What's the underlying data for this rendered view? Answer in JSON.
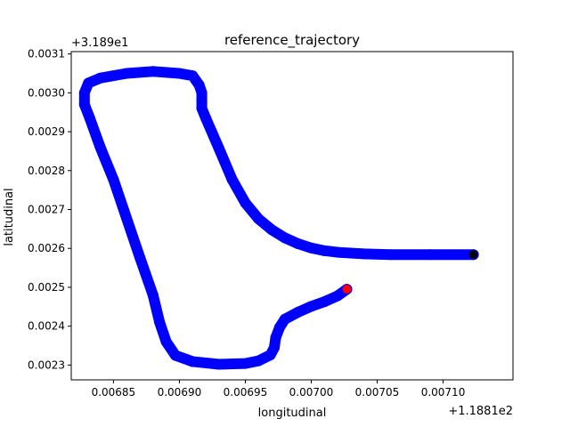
{
  "chart_data": {
    "type": "scatter",
    "title": "reference_trajectory",
    "xlabel": "longitudinal",
    "ylabel": "latitudinal",
    "x_offset_label": "+1.1881e2",
    "y_offset_label": "+3.189e1",
    "xlim": [
      0.006818,
      0.007153
    ],
    "ylim": [
      0.002262,
      0.003106
    ],
    "x_ticks": [
      0.00685,
      0.0069,
      0.00695,
      0.007,
      0.00705,
      0.0071
    ],
    "x_tick_labels": [
      "0.00685",
      "0.00690",
      "0.00695",
      "0.00700",
      "0.00705",
      "0.00710"
    ],
    "y_ticks": [
      0.0023,
      0.0024,
      0.0025,
      0.0026,
      0.0027,
      0.0028,
      0.0029,
      0.003,
      0.0031
    ],
    "y_tick_labels": [
      "0.0023",
      "0.0024",
      "0.0025",
      "0.0026",
      "0.0027",
      "0.0028",
      "0.0029",
      "0.0030",
      "0.0031"
    ],
    "grid": false,
    "series": [
      {
        "color": "#0000ff",
        "points": [
          [
            0.007123,
            0.002584
          ],
          [
            0.00709,
            0.002584
          ],
          [
            0.00706,
            0.002584
          ],
          [
            0.00704,
            0.002586
          ],
          [
            0.00702,
            0.00259
          ],
          [
            0.00701,
            0.002594
          ],
          [
            0.007,
            0.002601
          ],
          [
            0.00699,
            0.002612
          ],
          [
            0.00698,
            0.002627
          ],
          [
            0.00697,
            0.002648
          ],
          [
            0.00696,
            0.002676
          ],
          [
            0.00695,
            0.002717
          ],
          [
            0.00694,
            0.002777
          ],
          [
            0.00693,
            0.002857
          ],
          [
            0.00692,
            0.002935
          ],
          [
            0.006917,
            0.00296
          ],
          [
            0.006917,
            0.00298
          ],
          [
            0.006917,
            0.003
          ],
          [
            0.006915,
            0.00302
          ],
          [
            0.00691,
            0.003044
          ],
          [
            0.0069,
            0.00305
          ],
          [
            0.00688,
            0.003055
          ],
          [
            0.00686,
            0.00305
          ],
          [
            0.00684,
            0.003038
          ],
          [
            0.006831,
            0.003025
          ],
          [
            0.006828,
            0.003
          ],
          [
            0.006828,
            0.00297
          ],
          [
            0.006832,
            0.002935
          ],
          [
            0.00684,
            0.00286
          ],
          [
            0.00685,
            0.002777
          ],
          [
            0.00686,
            0.002677
          ],
          [
            0.00687,
            0.002577
          ],
          [
            0.00688,
            0.00248
          ],
          [
            0.006885,
            0.00241
          ],
          [
            0.00689,
            0.00236
          ],
          [
            0.006897,
            0.002325
          ],
          [
            0.00691,
            0.002309
          ],
          [
            0.00693,
            0.002302
          ],
          [
            0.00695,
            0.002304
          ],
          [
            0.00696,
            0.002311
          ],
          [
            0.006969,
            0.002326
          ],
          [
            0.006972,
            0.002345
          ],
          [
            0.006973,
            0.00237
          ],
          [
            0.006976,
            0.002397
          ],
          [
            0.00698,
            0.002418
          ],
          [
            0.00699,
            0.002436
          ],
          [
            0.007,
            0.002451
          ],
          [
            0.00701,
            0.002463
          ],
          [
            0.00702,
            0.002478
          ],
          [
            0.007027,
            0.002495
          ]
        ]
      }
    ],
    "markers": [
      {
        "color": "#000000",
        "x": 0.007123,
        "y": 0.002584
      },
      {
        "color": "#ff0000",
        "x": 0.007027,
        "y": 0.002495
      }
    ]
  }
}
